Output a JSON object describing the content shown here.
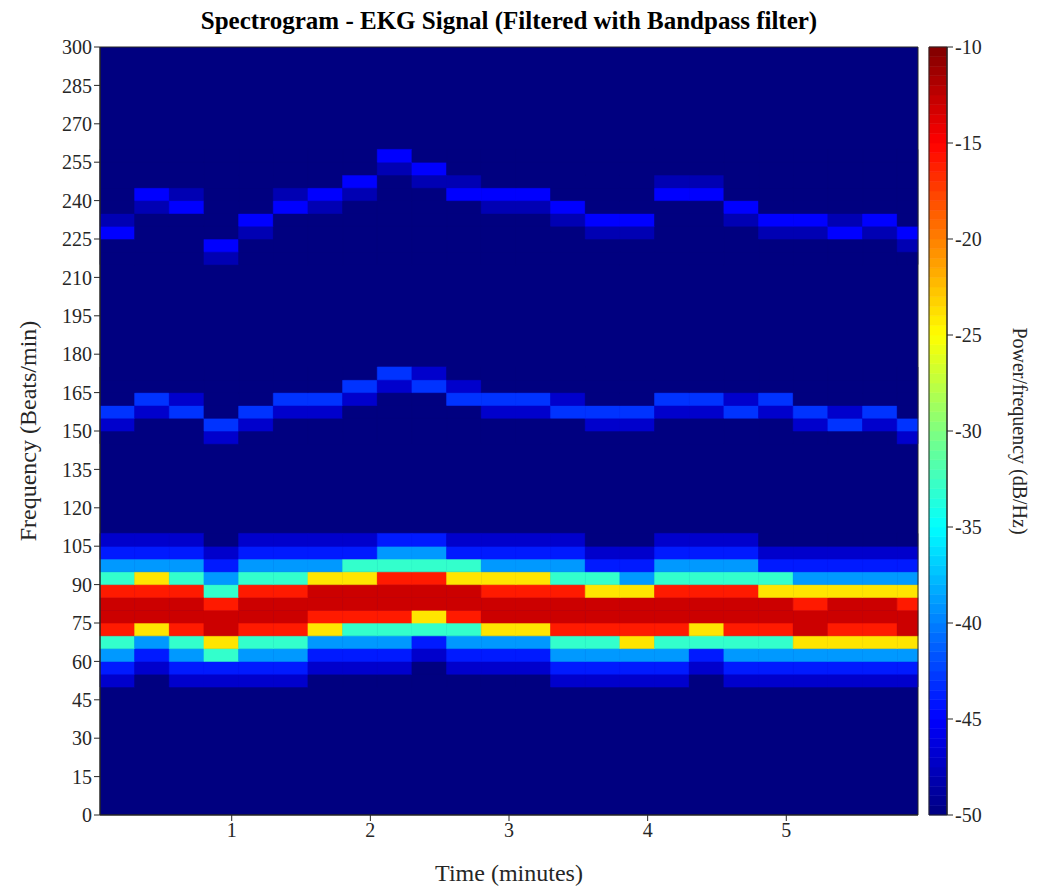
{
  "chart_data": {
    "type": "heatmap",
    "title": "Spectrogram - EKG Signal (Filtered with Bandpass filter)",
    "xlabel": "Time (minutes)",
    "ylabel": "Frequency (Beats/min)",
    "xlim": [
      0.05,
      5.95
    ],
    "ylim": [
      0,
      300
    ],
    "xticks": [
      1,
      2,
      3,
      4,
      5
    ],
    "yticks": [
      0,
      15,
      30,
      45,
      60,
      75,
      90,
      105,
      120,
      135,
      150,
      165,
      180,
      195,
      210,
      225,
      240,
      255,
      270,
      285,
      300
    ],
    "time_bins": [
      0.05,
      0.3,
      0.55,
      0.8,
      1.05,
      1.3,
      1.55,
      1.8,
      2.05,
      2.3,
      2.55,
      2.8,
      3.05,
      3.3,
      3.55,
      3.8,
      4.05,
      4.3,
      4.55,
      4.8,
      5.05,
      5.3,
      5.55,
      5.8,
      5.95
    ],
    "rows": [
      {
        "freq": [
          50,
          55
        ],
        "values": [
          -47,
          -50,
          -47,
          -47,
          -47,
          -47,
          -50,
          -50,
          -50,
          -50,
          -50,
          -50,
          -50,
          -47,
          -47,
          -47,
          -47,
          -50,
          -47,
          -47,
          -47,
          -47,
          -47,
          -47
        ]
      },
      {
        "freq": [
          55,
          60
        ],
        "values": [
          -44,
          -47,
          -44,
          -44,
          -44,
          -44,
          -47,
          -47,
          -47,
          -50,
          -47,
          -47,
          -47,
          -44,
          -44,
          -44,
          -44,
          -47,
          -44,
          -44,
          -44,
          -44,
          -44,
          -44
        ]
      },
      {
        "freq": [
          60,
          65
        ],
        "values": [
          -39,
          -44,
          -39,
          -33,
          -39,
          -39,
          -44,
          -44,
          -44,
          -47,
          -44,
          -44,
          -44,
          -39,
          -39,
          -39,
          -39,
          -44,
          -39,
          -39,
          -39,
          -39,
          -39,
          -39
        ]
      },
      {
        "freq": [
          65,
          70
        ],
        "values": [
          -33,
          -39,
          -33,
          -24,
          -33,
          -33,
          -39,
          -39,
          -39,
          -44,
          -39,
          -39,
          -39,
          -33,
          -33,
          -24,
          -33,
          -33,
          -33,
          -33,
          -24,
          -24,
          -24,
          -24
        ]
      },
      {
        "freq": [
          70,
          75
        ],
        "values": [
          -16,
          -24,
          -16,
          -13,
          -16,
          -16,
          -24,
          -33,
          -33,
          -33,
          -33,
          -24,
          -24,
          -16,
          -16,
          -16,
          -16,
          -24,
          -16,
          -16,
          -13,
          -16,
          -16,
          -13
        ]
      },
      {
        "freq": [
          75,
          80
        ],
        "values": [
          -13,
          -13,
          -13,
          -13,
          -13,
          -13,
          -16,
          -16,
          -16,
          -24,
          -16,
          -13,
          -13,
          -13,
          -13,
          -13,
          -13,
          -13,
          -13,
          -13,
          -13,
          -13,
          -13,
          -13
        ]
      },
      {
        "freq": [
          80,
          85
        ],
        "values": [
          -13,
          -13,
          -13,
          -16,
          -13,
          -13,
          -13,
          -13,
          -13,
          -13,
          -13,
          -13,
          -13,
          -13,
          -13,
          -13,
          -13,
          -13,
          -13,
          -13,
          -16,
          -13,
          -13,
          -16
        ]
      },
      {
        "freq": [
          85,
          90
        ],
        "values": [
          -16,
          -16,
          -16,
          -33,
          -16,
          -16,
          -13,
          -13,
          -13,
          -13,
          -13,
          -16,
          -16,
          -16,
          -24,
          -24,
          -16,
          -16,
          -16,
          -24,
          -24,
          -24,
          -24,
          -24
        ]
      },
      {
        "freq": [
          90,
          95
        ],
        "values": [
          -33,
          -24,
          -33,
          -39,
          -33,
          -33,
          -24,
          -24,
          -16,
          -16,
          -24,
          -24,
          -24,
          -33,
          -33,
          -39,
          -33,
          -33,
          -33,
          -33,
          -39,
          -39,
          -39,
          -39
        ]
      },
      {
        "freq": [
          95,
          100
        ],
        "values": [
          -39,
          -39,
          -39,
          -44,
          -39,
          -39,
          -39,
          -33,
          -33,
          -33,
          -33,
          -39,
          -39,
          -39,
          -44,
          -44,
          -39,
          -39,
          -39,
          -44,
          -44,
          -44,
          -44,
          -44
        ]
      },
      {
        "freq": [
          100,
          105
        ],
        "values": [
          -44,
          -44,
          -44,
          -47,
          -44,
          -44,
          -44,
          -44,
          -39,
          -39,
          -44,
          -44,
          -44,
          -44,
          -47,
          -47,
          -44,
          -44,
          -44,
          -47,
          -47,
          -47,
          -47,
          -47
        ]
      },
      {
        "freq": [
          105,
          110
        ],
        "values": [
          -47,
          -47,
          -47,
          -50,
          -47,
          -47,
          -47,
          -47,
          -44,
          -44,
          -47,
          -47,
          -47,
          -47,
          -50,
          -50,
          -47,
          -47,
          -47,
          -50,
          -50,
          -50,
          -50,
          -50
        ]
      },
      {
        "freq": [
          145,
          150
        ],
        "values": [
          -50,
          -50,
          -50,
          -47,
          -50,
          -50,
          -50,
          -50,
          -50,
          -50,
          -50,
          -50,
          -50,
          -50,
          -50,
          -50,
          -50,
          -50,
          -50,
          -50,
          -50,
          -50,
          -50,
          -47
        ]
      },
      {
        "freq": [
          150,
          155
        ],
        "values": [
          -47,
          -50,
          -50,
          -43,
          -47,
          -50,
          -50,
          -50,
          -50,
          -50,
          -50,
          -50,
          -50,
          -50,
          -47,
          -47,
          -50,
          -50,
          -50,
          -50,
          -47,
          -43,
          -47,
          -43
        ]
      },
      {
        "freq": [
          155,
          160
        ],
        "values": [
          -43,
          -47,
          -43,
          -50,
          -43,
          -47,
          -47,
          -50,
          -50,
          -50,
          -50,
          -47,
          -47,
          -43,
          -43,
          -43,
          -47,
          -47,
          -43,
          -47,
          -43,
          -47,
          -43,
          -50
        ]
      },
      {
        "freq": [
          160,
          165
        ],
        "values": [
          -50,
          -43,
          -47,
          -50,
          -50,
          -43,
          -43,
          -47,
          -50,
          -50,
          -43,
          -43,
          -43,
          -47,
          -50,
          -50,
          -43,
          -43,
          -47,
          -43,
          -50,
          -50,
          -50,
          -50
        ]
      },
      {
        "freq": [
          165,
          170
        ],
        "values": [
          -50,
          -50,
          -50,
          -50,
          -50,
          -50,
          -50,
          -43,
          -47,
          -43,
          -47,
          -50,
          -50,
          -50,
          -50,
          -50,
          -50,
          -50,
          -50,
          -50,
          -50,
          -50,
          -50,
          -50
        ]
      },
      {
        "freq": [
          170,
          175
        ],
        "values": [
          -50,
          -50,
          -50,
          -50,
          -50,
          -50,
          -50,
          -50,
          -43,
          -47,
          -50,
          -50,
          -50,
          -50,
          -50,
          -50,
          -50,
          -50,
          -50,
          -50,
          -50,
          -50,
          -50,
          -50
        ]
      },
      {
        "freq": [
          215,
          220
        ],
        "values": [
          -50,
          -50,
          -50,
          -48,
          -50,
          -50,
          -50,
          -50,
          -50,
          -50,
          -50,
          -50,
          -50,
          -50,
          -50,
          -50,
          -50,
          -50,
          -50,
          -50,
          -50,
          -50,
          -50,
          -50
        ]
      },
      {
        "freq": [
          220,
          225
        ],
        "values": [
          -50,
          -50,
          -50,
          -45,
          -50,
          -50,
          -50,
          -50,
          -50,
          -50,
          -50,
          -50,
          -50,
          -50,
          -50,
          -50,
          -50,
          -50,
          -50,
          -50,
          -50,
          -50,
          -50,
          -48
        ]
      },
      {
        "freq": [
          225,
          230
        ],
        "values": [
          -45,
          -50,
          -50,
          -50,
          -48,
          -50,
          -50,
          -50,
          -50,
          -50,
          -50,
          -50,
          -50,
          -50,
          -48,
          -48,
          -50,
          -50,
          -50,
          -48,
          -48,
          -45,
          -48,
          -45
        ]
      },
      {
        "freq": [
          230,
          235
        ],
        "values": [
          -48,
          -50,
          -50,
          -50,
          -45,
          -50,
          -50,
          -50,
          -50,
          -50,
          -50,
          -50,
          -50,
          -48,
          -45,
          -45,
          -50,
          -50,
          -48,
          -45,
          -45,
          -48,
          -45,
          -50
        ]
      },
      {
        "freq": [
          235,
          240
        ],
        "values": [
          -50,
          -48,
          -45,
          -50,
          -50,
          -45,
          -48,
          -50,
          -50,
          -50,
          -50,
          -48,
          -48,
          -45,
          -50,
          -50,
          -50,
          -50,
          -45,
          -50,
          -50,
          -50,
          -50,
          -50
        ]
      },
      {
        "freq": [
          240,
          245
        ],
        "values": [
          -50,
          -45,
          -48,
          -50,
          -50,
          -48,
          -45,
          -48,
          -50,
          -50,
          -45,
          -45,
          -45,
          -50,
          -50,
          -50,
          -45,
          -45,
          -50,
          -50,
          -50,
          -50,
          -50,
          -50
        ]
      },
      {
        "freq": [
          245,
          250
        ],
        "values": [
          -50,
          -50,
          -50,
          -50,
          -50,
          -50,
          -50,
          -45,
          -50,
          -48,
          -48,
          -50,
          -50,
          -50,
          -50,
          -50,
          -48,
          -48,
          -50,
          -50,
          -50,
          -50,
          -50,
          -50
        ]
      },
      {
        "freq": [
          250,
          255
        ],
        "values": [
          -50,
          -50,
          -50,
          -50,
          -50,
          -50,
          -50,
          -50,
          -48,
          -45,
          -50,
          -50,
          -50,
          -50,
          -50,
          -50,
          -50,
          -50,
          -50,
          -50,
          -50,
          -50,
          -50,
          -50
        ]
      },
      {
        "freq": [
          255,
          260
        ],
        "values": [
          -50,
          -50,
          -50,
          -50,
          -50,
          -50,
          -50,
          -50,
          -45,
          -50,
          -50,
          -50,
          -50,
          -50,
          -50,
          -50,
          -50,
          -50,
          -50,
          -50,
          -50,
          -50,
          -50,
          -50
        ]
      }
    ],
    "colorbar": {
      "label": "Power/frequency (dB/Hz)",
      "clim": [
        -50,
        -10
      ],
      "ticks": [
        -10,
        -15,
        -20,
        -25,
        -30,
        -35,
        -40,
        -45,
        -50
      ]
    }
  }
}
